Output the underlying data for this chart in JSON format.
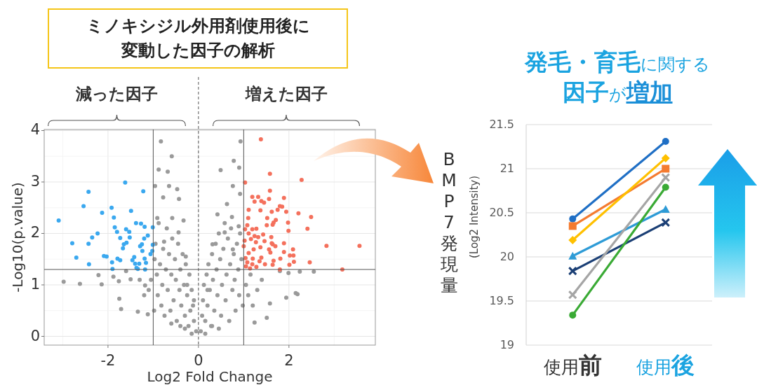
{
  "chart_data": [
    {
      "type": "scatter",
      "title": "ミノキシジル外用剤使用後に変動した因子の解析",
      "xlabel": "Log2 Fold Change",
      "ylabel": "-Log10(p.value)",
      "annotations": [
        "減った因子",
        "増えた因子"
      ],
      "xlim": [
        -3.41,
        3.91
      ],
      "ylim": [
        -0.17,
        4.02
      ],
      "xticks": [
        -2,
        0,
        2
      ],
      "yticks": [
        0,
        1,
        2,
        3,
        4
      ],
      "grid": true,
      "marker": "circle",
      "ref_lines": [
        {
          "axis": "x",
          "value": -1,
          "color": "#555555",
          "line_style": "solid"
        },
        {
          "axis": "x",
          "value": 1,
          "color": "#555555",
          "line_style": "solid"
        },
        {
          "axis": "x",
          "value": 0,
          "color": "#555555",
          "line_style": "dashed"
        },
        {
          "axis": "y",
          "value": 1.3,
          "color": "#555555",
          "line_style": "solid"
        }
      ],
      "series": [
        {
          "color": "#9a9a9a",
          "x": [
            -0.83,
            -0.59,
            0.93,
            0.78,
            0.49,
            0.9,
            -0.88,
            -0.68,
            -0.96,
            -0.65,
            -0.47,
            -0.78,
            -0.43,
            0.76,
            0.92,
            0.63,
            -0.91,
            -0.58,
            -0.33,
            0.42,
            0.74,
            0.89,
            -0.76,
            -0.44,
            -0.28,
            0.31,
            0.58,
            0.76,
            -2.98,
            -2.62,
            -2.21,
            -2.14,
            -1.88,
            -1.76,
            -1.75,
            -1.71,
            -1.6,
            -1.5,
            -1.34,
            -1.12,
            -1.18,
            1.51,
            2.15,
            2.19,
            1.94,
            2.55,
            2.24,
            1.99,
            1.58,
            1.24,
            1.8,
            -0.05,
            -0.1,
            -0.12,
            -0.15,
            -0.18,
            -0.2,
            -0.22,
            -0.25,
            -0.28,
            -0.3,
            -0.32,
            -0.35,
            -0.38,
            -0.4,
            -0.42,
            -0.45,
            -0.48,
            -0.5,
            -0.52,
            -0.55,
            -0.58,
            -0.6,
            -0.62,
            -0.65,
            -0.68,
            -0.7,
            -0.72,
            -0.75,
            -0.78,
            -0.8,
            -0.82,
            -0.85,
            -0.88,
            -0.9,
            -0.92,
            -0.95,
            -0.98,
            -0.97,
            -0.3,
            -0.15,
            -0.1,
            -0.25,
            -0.4,
            -0.6,
            -1.05,
            -1.1,
            -1.2,
            -1.3,
            0.05,
            0.08,
            0.1,
            0.12,
            0.15,
            0.18,
            0.2,
            0.22,
            0.25,
            0.28,
            0.3,
            0.32,
            0.35,
            0.38,
            0.4,
            0.42,
            0.45,
            0.48,
            0.5,
            0.52,
            0.55,
            0.58,
            0.6,
            0.62,
            0.65,
            0.68,
            0.7,
            0.72,
            0.75,
            0.78,
            0.8,
            0.82,
            0.85,
            0.88,
            0.9,
            0.92,
            0.95,
            0.98,
            1.05,
            1.1,
            1.15,
            1.2,
            1.3,
            1.4,
            0.15,
            0.3,
            0.45,
            0.2
          ],
          "values": [
            3.79,
            3.5,
            3.79,
            3.41,
            3.23,
            3.28,
            3.24,
            3.2,
            2.92,
            2.92,
            2.86,
            2.7,
            2.67,
            2.92,
            2.77,
            2.57,
            2.3,
            2.3,
            2.25,
            2.37,
            2.32,
            2.14,
            1.84,
            2.02,
            1.55,
            1.79,
            2.02,
            1.69,
            1.06,
            1.02,
            1.19,
            1.01,
            1.16,
            1.07,
            0.73,
            0.53,
            1.27,
            1.11,
            0.48,
            0.43,
            0.99,
            0.36,
            0.84,
            0.82,
            0.75,
            1.26,
            1.26,
            1.23,
            0.64,
            0.27,
            1.27,
            0.1,
            0.3,
            0.6,
            0.9,
            0.5,
            1.2,
            0.2,
            0.8,
            1.4,
            0.4,
            1.0,
            1.6,
            0.6,
            1.3,
            0.9,
            1.8,
            0.3,
            1.1,
            1.5,
            0.7,
            1.9,
            1.2,
            0.5,
            1.6,
            0.9,
            2.1,
            1.3,
            0.4,
            1.7,
            1.0,
            0.6,
            1.4,
            2.2,
            0.8,
            1.2,
            1.8,
            0.5,
            1.5,
            0.15,
            0.05,
            0.7,
            1.0,
            0.2,
            0.25,
            1.1,
            0.9,
            0.8,
            1.1,
            0.1,
            0.4,
            0.7,
            1.0,
            0.3,
            1.2,
            0.6,
            1.4,
            0.9,
            0.2,
            1.6,
            1.1,
            0.5,
            1.8,
            1.3,
            0.8,
            2.0,
            1.5,
            0.4,
            1.0,
            1.7,
            2.2,
            0.7,
            1.2,
            1.9,
            0.3,
            1.4,
            2.1,
            0.9,
            1.6,
            1.1,
            0.5,
            1.8,
            1.3,
            0.8,
            2.0,
            1.5,
            0.6,
            1.0,
            0.8,
            1.2,
            0.6,
            0.9,
            1.1,
            0.05,
            0.2,
            0.15,
            0.9
          ]
        },
        {
          "color": "#3aa8ef",
          "x": [
            -3.09,
            -2.79,
            -2.7,
            -2.54,
            -2.43,
            -2.43,
            -2.42,
            -2.35,
            -2.23,
            -2.13,
            -2.09,
            -2.03,
            -1.92,
            -1.91,
            -1.9,
            -1.87,
            -1.85,
            -1.8,
            -1.79,
            -1.73,
            -1.73,
            -1.67,
            -1.65,
            -1.62,
            -1.6,
            -1.59,
            -1.53,
            -1.52,
            -1.49,
            -1.46,
            -1.42,
            -1.4,
            -1.38,
            -1.37,
            -1.34,
            -1.31,
            -1.29,
            -1.27,
            -1.25,
            -1.24,
            -1.22,
            -1.2,
            -1.19,
            -1.19,
            -1.18,
            -1.16,
            -1.12,
            -1.06,
            -1.02,
            -1.01,
            -1.01
          ],
          "values": [
            2.25,
            1.81,
            1.53,
            2.53,
            2.81,
            1.8,
            1.4,
            1.92,
            2.0,
            2.4,
            1.56,
            1.55,
            2.5,
            1.44,
            1.31,
            2.31,
            2.12,
            2.03,
            1.51,
            1.91,
            1.48,
            1.71,
            1.79,
            2.99,
            2.08,
            1.82,
            2.03,
            1.92,
            2.44,
            1.48,
            1.54,
            1.41,
            2.2,
            1.33,
            1.31,
            1.41,
            1.75,
            2.19,
            1.79,
            1.66,
            2.82,
            1.9,
            2.13,
            1.51,
            1.3,
            1.43,
            1.96,
            1.6,
            1.66,
            2.12,
            1.78
          ]
        },
        {
          "color": "#f4705c",
          "x": [
            1.03,
            1.38,
            1.58,
            2.28,
            1.58,
            1.19,
            1.32,
            1.89,
            1.56,
            1.39,
            1.45,
            1.24,
            1.8,
            1.85,
            1.11,
            1.37,
            1.75,
            1.62,
            1.94,
            2.21,
            2.49,
            1.1,
            1.52,
            1.71,
            1.66,
            1.98,
            1.08,
            1.51,
            1.64,
            2.41,
            1.03,
            1.19,
            1.28,
            1.99,
            1.11,
            1.43,
            1.24,
            1.32,
            1.61,
            1.16,
            1.02,
            1.46,
            1.27,
            1.62,
            1.89,
            1.64,
            2.83,
            3.56,
            1.0,
            1.7,
            1.37,
            2.09,
            1.22,
            1.56,
            1.11,
            1.89,
            1.59,
            2.02,
            2.1,
            1.04,
            1.39,
            1.2,
            1.81,
            1.66,
            1.35,
            1.08,
            2.11,
            2.46,
            2.01,
            1.19,
            1.47,
            1.64,
            1.05,
            1.28,
            1.14,
            3.18,
            1.8
          ],
          "values": [
            2.99,
            3.83,
            3.16,
            3.04,
            2.83,
            2.71,
            2.71,
            2.69,
            2.67,
            2.63,
            2.6,
            2.62,
            2.53,
            2.52,
            2.46,
            2.45,
            2.46,
            2.42,
            2.42,
            2.39,
            2.32,
            2.3,
            2.3,
            2.26,
            2.21,
            2.21,
            2.16,
            2.16,
            2.17,
            2.09,
            2.08,
            2.08,
            2.09,
            2.05,
            2.0,
            1.98,
            1.95,
            1.93,
            1.93,
            1.89,
            1.86,
            1.85,
            1.83,
            1.81,
            1.81,
            1.79,
            1.76,
            1.76,
            1.75,
            1.75,
            1.73,
            1.69,
            1.69,
            1.69,
            1.62,
            1.64,
            1.63,
            1.57,
            1.57,
            1.52,
            1.53,
            1.51,
            1.51,
            1.47,
            1.46,
            1.44,
            1.45,
            1.44,
            1.39,
            1.4,
            1.4,
            1.39,
            1.36,
            1.35,
            1.32,
            1.3,
            1.3
          ]
        }
      ]
    },
    {
      "type": "line",
      "title": "**発毛・育毛**に関する**因子**が**増加**",
      "ylabel": "BMP7発現量",
      "annotations": [
        "(Log2 Intensity)"
      ],
      "categories": [
        "使用**前**",
        "使用**後**"
      ],
      "ylim": [
        19,
        21.5
      ],
      "yticks": [
        19,
        19.5,
        20,
        20.5,
        21,
        21.5
      ],
      "grid": "y",
      "series": [
        {
          "color": "#1f6fc5",
          "marker": "circle",
          "values": [
            20.43,
            21.31
          ]
        },
        {
          "color": "#f47b30",
          "marker": "square",
          "values": [
            20.35,
            21.0
          ]
        },
        {
          "color": "#ffc000",
          "marker": "diamond",
          "values": [
            20.19,
            21.12
          ]
        },
        {
          "color": "#2e9bd6",
          "marker": "triangle",
          "values": [
            20.01,
            20.54
          ]
        },
        {
          "color": "#1b3f75",
          "marker": "cross",
          "values": [
            19.84,
            20.39
          ]
        },
        {
          "color": "#a5a5a5",
          "marker": "cross",
          "values": [
            19.57,
            20.9
          ]
        },
        {
          "color": "#3aaa35",
          "marker": "circle",
          "values": [
            19.34,
            20.79
          ]
        }
      ]
    }
  ]
}
